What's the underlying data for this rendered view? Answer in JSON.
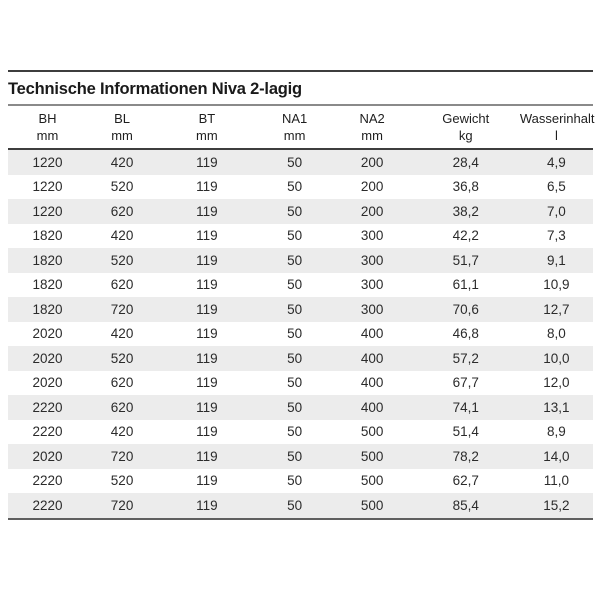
{
  "title": "Technische Informationen Niva 2-lagig",
  "table": {
    "columns": [
      {
        "label": "BH",
        "unit": "mm"
      },
      {
        "label": "BL",
        "unit": "mm"
      },
      {
        "label": "BT",
        "unit": "mm"
      },
      {
        "label": "NA1",
        "unit": "mm"
      },
      {
        "label": "NA2",
        "unit": "mm"
      },
      {
        "label": "Gewicht",
        "unit": "kg"
      },
      {
        "label": "Wasserinhalt",
        "unit": "l"
      }
    ],
    "rows": [
      [
        "1220",
        "420",
        "119",
        "50",
        "200",
        "28,4",
        "4,9"
      ],
      [
        "1220",
        "520",
        "119",
        "50",
        "200",
        "36,8",
        "6,5"
      ],
      [
        "1220",
        "620",
        "119",
        "50",
        "200",
        "38,2",
        "7,0"
      ],
      [
        "1820",
        "420",
        "119",
        "50",
        "300",
        "42,2",
        "7,3"
      ],
      [
        "1820",
        "520",
        "119",
        "50",
        "300",
        "51,7",
        "9,1"
      ],
      [
        "1820",
        "620",
        "119",
        "50",
        "300",
        "61,1",
        "10,9"
      ],
      [
        "1820",
        "720",
        "119",
        "50",
        "300",
        "70,6",
        "12,7"
      ],
      [
        "2020",
        "420",
        "119",
        "50",
        "400",
        "46,8",
        "8,0"
      ],
      [
        "2020",
        "520",
        "119",
        "50",
        "400",
        "57,2",
        "10,0"
      ],
      [
        "2020",
        "620",
        "119",
        "50",
        "400",
        "67,7",
        "12,0"
      ],
      [
        "2220",
        "620",
        "119",
        "50",
        "400",
        "74,1",
        "13,1"
      ],
      [
        "2220",
        "420",
        "119",
        "50",
        "500",
        "51,4",
        "8,9"
      ],
      [
        "2020",
        "720",
        "119",
        "50",
        "500",
        "78,2",
        "14,0"
      ],
      [
        "2220",
        "520",
        "119",
        "50",
        "500",
        "62,7",
        "11,0"
      ],
      [
        "2220",
        "720",
        "119",
        "50",
        "500",
        "85,4",
        "15,2"
      ]
    ]
  },
  "colors": {
    "stripe": "#ececec",
    "rule_dark": "#3d3d3d",
    "rule_light": "#8a8a8a",
    "rule_bottom": "#5f5f5f",
    "text": "#2b2b2b"
  }
}
